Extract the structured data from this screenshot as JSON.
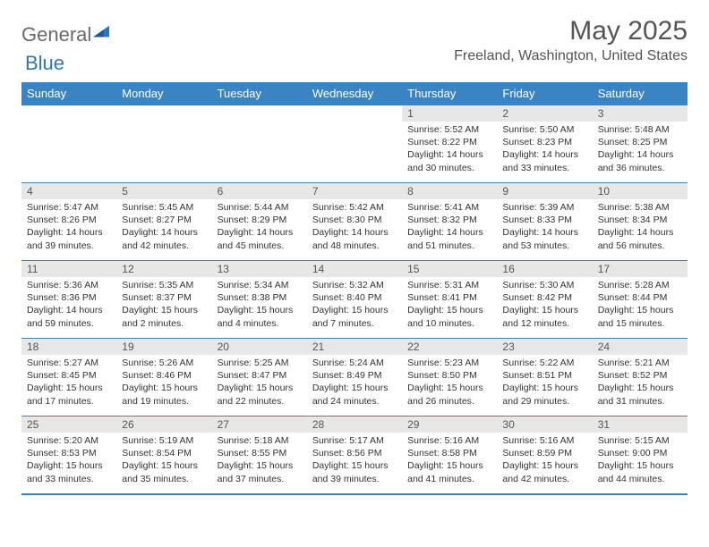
{
  "brand": {
    "part1": "General",
    "part2": "Blue"
  },
  "title": "May 2025",
  "location": "Freeland, Washington, United States",
  "colors": {
    "header_bg": "#3b84c4",
    "header_text": "#ffffff",
    "daynum_bg": "#e7e7e7",
    "border": "#3b84c4",
    "body_text": "#333333",
    "title_text": "#555555"
  },
  "typography": {
    "title_fontsize": 30,
    "location_fontsize": 16,
    "header_fontsize": 13,
    "cell_fontsize": 10.5
  },
  "dayNames": [
    "Sunday",
    "Monday",
    "Tuesday",
    "Wednesday",
    "Thursday",
    "Friday",
    "Saturday"
  ],
  "weeks": [
    [
      {
        "n": "",
        "sunrise": "",
        "sunset": "",
        "daylight": ""
      },
      {
        "n": "",
        "sunrise": "",
        "sunset": "",
        "daylight": ""
      },
      {
        "n": "",
        "sunrise": "",
        "sunset": "",
        "daylight": ""
      },
      {
        "n": "",
        "sunrise": "",
        "sunset": "",
        "daylight": ""
      },
      {
        "n": "1",
        "sunrise": "Sunrise: 5:52 AM",
        "sunset": "Sunset: 8:22 PM",
        "daylight": "Daylight: 14 hours and 30 minutes."
      },
      {
        "n": "2",
        "sunrise": "Sunrise: 5:50 AM",
        "sunset": "Sunset: 8:23 PM",
        "daylight": "Daylight: 14 hours and 33 minutes."
      },
      {
        "n": "3",
        "sunrise": "Sunrise: 5:48 AM",
        "sunset": "Sunset: 8:25 PM",
        "daylight": "Daylight: 14 hours and 36 minutes."
      }
    ],
    [
      {
        "n": "4",
        "sunrise": "Sunrise: 5:47 AM",
        "sunset": "Sunset: 8:26 PM",
        "daylight": "Daylight: 14 hours and 39 minutes."
      },
      {
        "n": "5",
        "sunrise": "Sunrise: 5:45 AM",
        "sunset": "Sunset: 8:27 PM",
        "daylight": "Daylight: 14 hours and 42 minutes."
      },
      {
        "n": "6",
        "sunrise": "Sunrise: 5:44 AM",
        "sunset": "Sunset: 8:29 PM",
        "daylight": "Daylight: 14 hours and 45 minutes."
      },
      {
        "n": "7",
        "sunrise": "Sunrise: 5:42 AM",
        "sunset": "Sunset: 8:30 PM",
        "daylight": "Daylight: 14 hours and 48 minutes."
      },
      {
        "n": "8",
        "sunrise": "Sunrise: 5:41 AM",
        "sunset": "Sunset: 8:32 PM",
        "daylight": "Daylight: 14 hours and 51 minutes."
      },
      {
        "n": "9",
        "sunrise": "Sunrise: 5:39 AM",
        "sunset": "Sunset: 8:33 PM",
        "daylight": "Daylight: 14 hours and 53 minutes."
      },
      {
        "n": "10",
        "sunrise": "Sunrise: 5:38 AM",
        "sunset": "Sunset: 8:34 PM",
        "daylight": "Daylight: 14 hours and 56 minutes."
      }
    ],
    [
      {
        "n": "11",
        "sunrise": "Sunrise: 5:36 AM",
        "sunset": "Sunset: 8:36 PM",
        "daylight": "Daylight: 14 hours and 59 minutes."
      },
      {
        "n": "12",
        "sunrise": "Sunrise: 5:35 AM",
        "sunset": "Sunset: 8:37 PM",
        "daylight": "Daylight: 15 hours and 2 minutes."
      },
      {
        "n": "13",
        "sunrise": "Sunrise: 5:34 AM",
        "sunset": "Sunset: 8:38 PM",
        "daylight": "Daylight: 15 hours and 4 minutes."
      },
      {
        "n": "14",
        "sunrise": "Sunrise: 5:32 AM",
        "sunset": "Sunset: 8:40 PM",
        "daylight": "Daylight: 15 hours and 7 minutes."
      },
      {
        "n": "15",
        "sunrise": "Sunrise: 5:31 AM",
        "sunset": "Sunset: 8:41 PM",
        "daylight": "Daylight: 15 hours and 10 minutes."
      },
      {
        "n": "16",
        "sunrise": "Sunrise: 5:30 AM",
        "sunset": "Sunset: 8:42 PM",
        "daylight": "Daylight: 15 hours and 12 minutes."
      },
      {
        "n": "17",
        "sunrise": "Sunrise: 5:28 AM",
        "sunset": "Sunset: 8:44 PM",
        "daylight": "Daylight: 15 hours and 15 minutes."
      }
    ],
    [
      {
        "n": "18",
        "sunrise": "Sunrise: 5:27 AM",
        "sunset": "Sunset: 8:45 PM",
        "daylight": "Daylight: 15 hours and 17 minutes."
      },
      {
        "n": "19",
        "sunrise": "Sunrise: 5:26 AM",
        "sunset": "Sunset: 8:46 PM",
        "daylight": "Daylight: 15 hours and 19 minutes."
      },
      {
        "n": "20",
        "sunrise": "Sunrise: 5:25 AM",
        "sunset": "Sunset: 8:47 PM",
        "daylight": "Daylight: 15 hours and 22 minutes."
      },
      {
        "n": "21",
        "sunrise": "Sunrise: 5:24 AM",
        "sunset": "Sunset: 8:49 PM",
        "daylight": "Daylight: 15 hours and 24 minutes."
      },
      {
        "n": "22",
        "sunrise": "Sunrise: 5:23 AM",
        "sunset": "Sunset: 8:50 PM",
        "daylight": "Daylight: 15 hours and 26 minutes."
      },
      {
        "n": "23",
        "sunrise": "Sunrise: 5:22 AM",
        "sunset": "Sunset: 8:51 PM",
        "daylight": "Daylight: 15 hours and 29 minutes."
      },
      {
        "n": "24",
        "sunrise": "Sunrise: 5:21 AM",
        "sunset": "Sunset: 8:52 PM",
        "daylight": "Daylight: 15 hours and 31 minutes."
      }
    ],
    [
      {
        "n": "25",
        "sunrise": "Sunrise: 5:20 AM",
        "sunset": "Sunset: 8:53 PM",
        "daylight": "Daylight: 15 hours and 33 minutes."
      },
      {
        "n": "26",
        "sunrise": "Sunrise: 5:19 AM",
        "sunset": "Sunset: 8:54 PM",
        "daylight": "Daylight: 15 hours and 35 minutes."
      },
      {
        "n": "27",
        "sunrise": "Sunrise: 5:18 AM",
        "sunset": "Sunset: 8:55 PM",
        "daylight": "Daylight: 15 hours and 37 minutes."
      },
      {
        "n": "28",
        "sunrise": "Sunrise: 5:17 AM",
        "sunset": "Sunset: 8:56 PM",
        "daylight": "Daylight: 15 hours and 39 minutes."
      },
      {
        "n": "29",
        "sunrise": "Sunrise: 5:16 AM",
        "sunset": "Sunset: 8:58 PM",
        "daylight": "Daylight: 15 hours and 41 minutes."
      },
      {
        "n": "30",
        "sunrise": "Sunrise: 5:16 AM",
        "sunset": "Sunset: 8:59 PM",
        "daylight": "Daylight: 15 hours and 42 minutes."
      },
      {
        "n": "31",
        "sunrise": "Sunrise: 5:15 AM",
        "sunset": "Sunset: 9:00 PM",
        "daylight": "Daylight: 15 hours and 44 minutes."
      }
    ]
  ]
}
